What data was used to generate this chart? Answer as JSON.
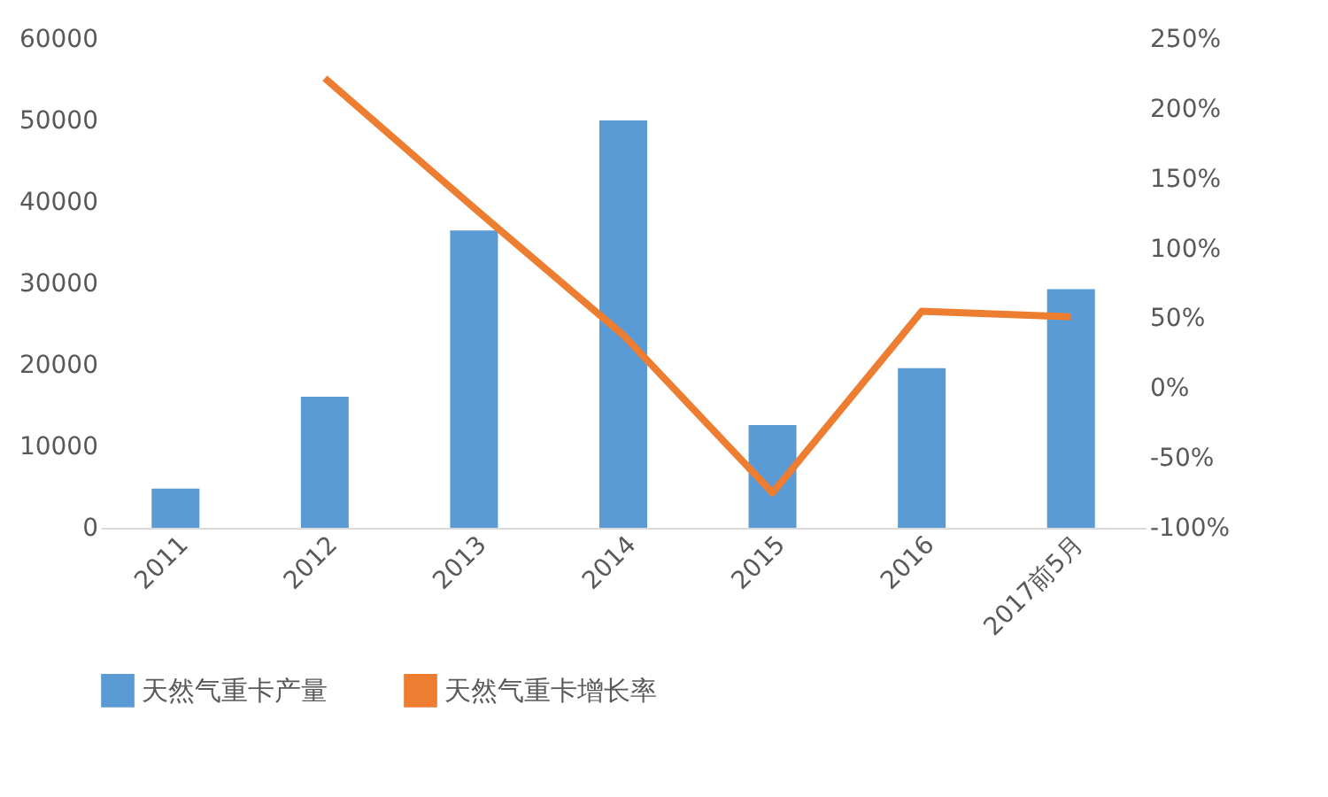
{
  "chart_data": {
    "type": "bar",
    "categories": [
      "2011",
      "2012",
      "2013",
      "2014",
      "2015",
      "2016",
      "2017前5月"
    ],
    "series": [
      {
        "name": "天然气重卡产量",
        "color": "#5b9bd5",
        "values": [
          4800,
          16100,
          36500,
          50000,
          12600,
          19600,
          29300
        ]
      },
      {
        "name": "天然气重卡增长率",
        "type": "line",
        "axis": "y2",
        "color": "#ed7d31",
        "values": [
          null,
          222,
          129,
          38,
          -75,
          55,
          51
        ]
      }
    ],
    "ylim": [
      0,
      60000
    ],
    "yticks": [
      0,
      10000,
      20000,
      30000,
      40000,
      50000,
      60000
    ],
    "y2lim": [
      -100,
      250
    ],
    "y2ticks": [
      {
        "value": -100,
        "label": "-100%"
      },
      {
        "value": -50,
        "label": "-50%"
      },
      {
        "value": 0,
        "label": "0%"
      },
      {
        "value": 50,
        "label": "50%"
      },
      {
        "value": 100,
        "label": "100%"
      },
      {
        "value": 150,
        "label": "150%"
      },
      {
        "value": 200,
        "label": "200%"
      },
      {
        "value": 250,
        "label": "250%"
      }
    ],
    "grid": false,
    "legend": "bottom",
    "marker": "none",
    "line_style": "solid"
  }
}
